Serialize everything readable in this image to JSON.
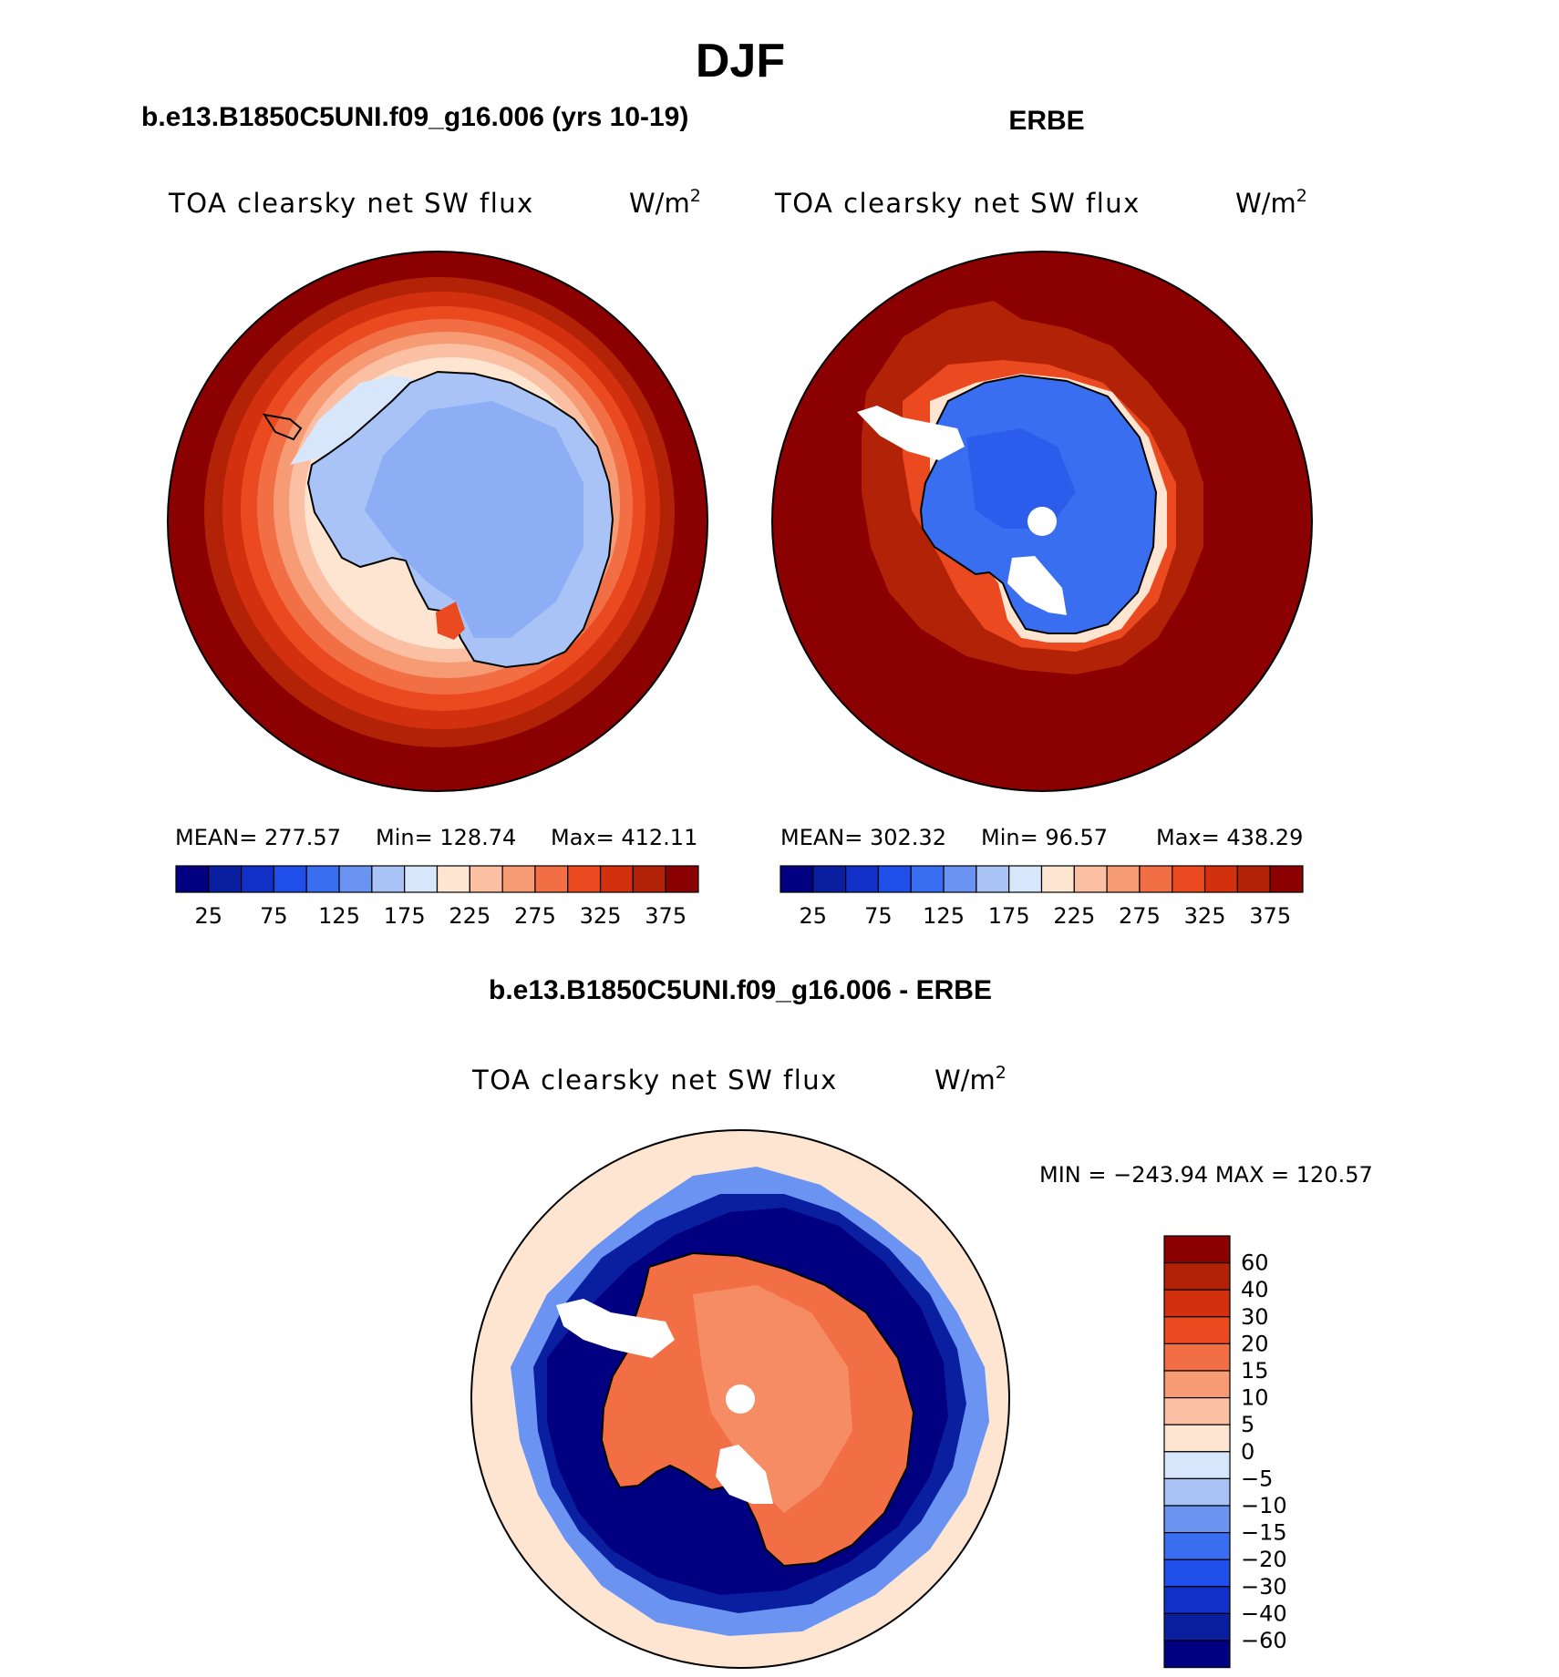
{
  "figure": {
    "season": "DJF"
  },
  "panels": [
    {
      "id": "model",
      "case_title": "b.e13.B1850C5UNI.f09_g16.006 (yrs 10-19)",
      "variable": "TOA clearsky net SW flux",
      "units": "W/m",
      "units_exp": "2",
      "stats": {
        "mean": "MEAN= 277.57",
        "min": "Min= 128.74",
        "max": "Max= 412.11"
      }
    },
    {
      "id": "obs",
      "case_title": "ERBE",
      "variable": "TOA clearsky net SW flux",
      "units": "W/m",
      "units_exp": "2",
      "stats": {
        "mean": "MEAN= 302.32",
        "min": "Min=  96.57",
        "max": "Max= 438.29"
      }
    },
    {
      "id": "diff",
      "case_title": "b.e13.B1850C5UNI.f09_g16.006 - ERBE",
      "variable": "TOA clearsky net SW flux",
      "units": "W/m",
      "units_exp": "2",
      "stats": {
        "minmax": "MIN = −243.94 MAX = 120.57"
      }
    }
  ],
  "colorbars": {
    "absolute": {
      "colors": [
        "#000080",
        "#0a1ea0",
        "#1030c8",
        "#1f4fe8",
        "#3a6ef0",
        "#6b94f2",
        "#a9c3f7",
        "#d8e6fb",
        "#fde5d2",
        "#fbbfa3",
        "#f79b74",
        "#f26f45",
        "#eb4a20",
        "#d2300f",
        "#b22207",
        "#8b0000"
      ],
      "tick_labels": [
        "25",
        "75",
        "125",
        "175",
        "225",
        "275",
        "325",
        "375"
      ]
    },
    "difference": {
      "colors": [
        "#000080",
        "#0a1ea0",
        "#1030c8",
        "#1f4fe8",
        "#3a6ef0",
        "#6b94f2",
        "#a9c3f7",
        "#d8e6fb",
        "#fde5d2",
        "#fbbfa3",
        "#f79b74",
        "#f26f45",
        "#eb4a20",
        "#d2300f",
        "#b22207",
        "#8b0000"
      ],
      "tick_labels": [
        "60",
        "40",
        "30",
        "20",
        "15",
        "10",
        "5",
        "0",
        "−5",
        "−10",
        "−15",
        "−20",
        "−30",
        "−40",
        "−60"
      ]
    }
  }
}
